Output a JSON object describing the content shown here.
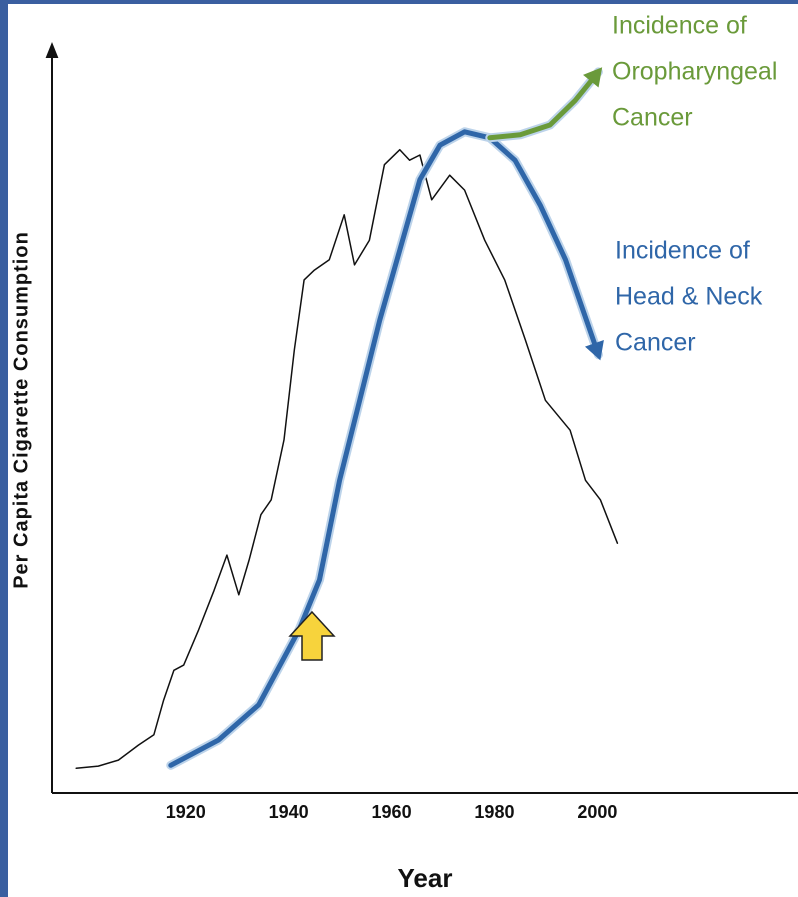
{
  "chart_data": {
    "type": "line",
    "x_label": "Year",
    "y_label": "Per Capita Cigarette Consumption",
    "xlim": [
      1894,
      2039
    ],
    "ylim": [
      0,
      100
    ],
    "xticks": [
      1920,
      1940,
      1960,
      1980,
      2000
    ],
    "grid": false,
    "series": [
      {
        "color": "#111111",
        "x": [
          1898.7,
          1903.0,
          1906.9,
          1910.8,
          1913.8,
          1915.7,
          1917.7,
          1919.6,
          1922.5,
          1925.5,
          1928.0,
          1930.3,
          1932.3,
          1934.6,
          1936.6,
          1939.1,
          1941.1,
          1943.0,
          1945.0,
          1947.9,
          1950.8,
          1952.8,
          1955.7,
          1958.6,
          1961.6,
          1963.5,
          1965.5,
          1967.8,
          1971.3,
          1974.2,
          1978.1,
          1982.0,
          1986.0,
          1989.9,
          1994.7,
          1997.7,
          2000.6,
          2003.9
        ],
        "values": [
          3.3,
          3.6,
          4.4,
          6.4,
          7.8,
          12.4,
          16.4,
          17.1,
          21.8,
          27.1,
          31.8,
          26.5,
          31.1,
          37.2,
          39.2,
          47.2,
          59.2,
          68.6,
          69.9,
          71.3,
          77.3,
          70.6,
          73.9,
          84.0,
          86.0,
          84.6,
          85.3,
          79.3,
          82.6,
          80.6,
          73.9,
          68.6,
          60.6,
          52.5,
          48.5,
          41.8,
          39.2,
          33.4
        ]
      },
      {
        "name_lines": [
          "Incidence of",
          "Head & Neck",
          "Cancer"
        ],
        "color": "#2f66a8",
        "x": [
          1917.1,
          1926.4,
          1934.2,
          1942.0,
          1946.0,
          1949.9,
          1953.8,
          1957.7,
          1961.6,
          1965.5,
          1969.4,
          1974.2,
          1979.1,
          1984.0,
          1988.9,
          1993.8,
          2000.2
        ],
        "values": [
          3.7,
          7.1,
          11.8,
          21.8,
          28.5,
          41.8,
          52.5,
          63.2,
          72.6,
          82.0,
          86.6,
          88.4,
          87.6,
          84.6,
          78.6,
          71.3,
          58.6
        ]
      },
      {
        "name_lines": [
          "Incidence of",
          "Oropharyngeal",
          "Cancer"
        ],
        "color": "#6a9a3a",
        "x": [
          1979.1,
          1985.0,
          1990.8,
          1995.7,
          2000.2
        ],
        "values": [
          87.6,
          88.0,
          89.3,
          92.6,
          96.4
        ]
      }
    ]
  }
}
